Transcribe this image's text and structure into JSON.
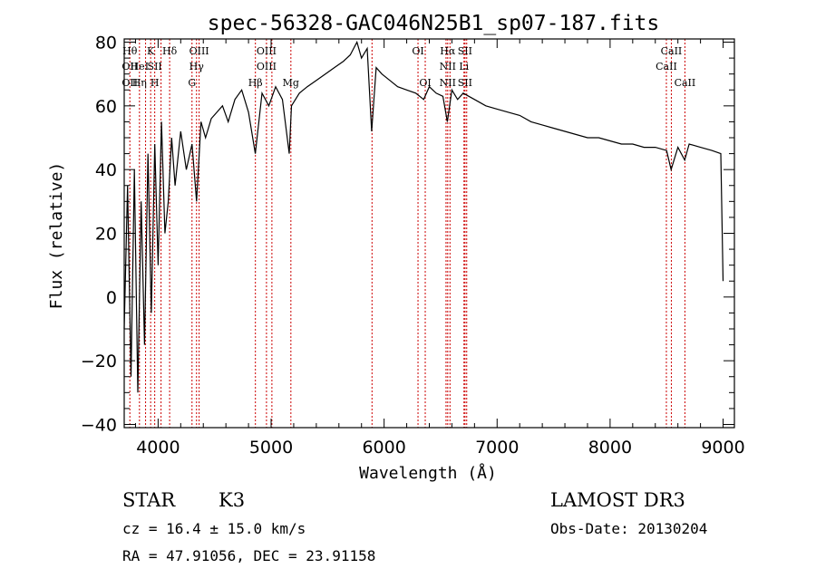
{
  "chart_data": {
    "type": "line",
    "title": "spec-56328-GAC046N25B1_sp07-187.fits",
    "xlabel": "Wavelength (Å)",
    "ylabel": "Flux (relative)",
    "xlim": [
      3700,
      9100
    ],
    "ylim": [
      -41,
      81
    ],
    "x_ticks": [
      4000,
      5000,
      6000,
      7000,
      8000,
      9000
    ],
    "y_ticks": [
      -40,
      -20,
      0,
      20,
      40,
      60,
      80
    ],
    "series": [
      {
        "name": "flux",
        "x": [
          3700,
          3730,
          3760,
          3790,
          3820,
          3850,
          3880,
          3910,
          3940,
          3970,
          4000,
          4030,
          4060,
          4090,
          4120,
          4150,
          4200,
          4250,
          4300,
          4340,
          4380,
          4420,
          4470,
          4520,
          4570,
          4620,
          4680,
          4740,
          4800,
          4860,
          4920,
          4980,
          5040,
          5100,
          5160,
          5180,
          5250,
          5320,
          5400,
          5480,
          5560,
          5640,
          5700,
          5760,
          5800,
          5850,
          5890,
          5930,
          5980,
          6050,
          6120,
          6200,
          6280,
          6350,
          6400,
          6460,
          6520,
          6560,
          6600,
          6650,
          6700,
          6750,
          6800,
          6900,
          7000,
          7100,
          7200,
          7300,
          7400,
          7500,
          7600,
          7700,
          7800,
          7900,
          8000,
          8100,
          8200,
          8300,
          8400,
          8500,
          8540,
          8600,
          8660,
          8700,
          8800,
          8900,
          8980,
          9000
        ],
        "y": [
          -10,
          35,
          -25,
          40,
          -30,
          30,
          -15,
          45,
          -5,
          48,
          10,
          55,
          20,
          30,
          50,
          35,
          52,
          40,
          48,
          30,
          55,
          50,
          56,
          58,
          60,
          55,
          62,
          65,
          58,
          45,
          64,
          60,
          66,
          62,
          45,
          60,
          64,
          66,
          68,
          70,
          72,
          74,
          76,
          80,
          75,
          78,
          52,
          72,
          70,
          68,
          66,
          65,
          64,
          62,
          66,
          64,
          63,
          55,
          65,
          62,
          64,
          63,
          62,
          60,
          59,
          58,
          57,
          55,
          54,
          53,
          52,
          51,
          50,
          50,
          49,
          48,
          48,
          47,
          47,
          46,
          40,
          47,
          43,
          48,
          47,
          46,
          45,
          5
        ]
      }
    ],
    "line_markers": [
      {
        "wl": 3750,
        "labels": [
          "Hθ",
          "OII",
          "OII"
        ]
      },
      {
        "wl": 3835,
        "labels": [
          "",
          "HeI",
          "Hη"
        ]
      },
      {
        "wl": 3889,
        "labels": [
          "",
          "",
          ""
        ]
      },
      {
        "wl": 3934,
        "labels": [
          "K",
          "",
          ""
        ]
      },
      {
        "wl": 3970,
        "labels": [
          "",
          "SII",
          "H"
        ]
      },
      {
        "wl": 4026,
        "labels": [
          "",
          "",
          ""
        ]
      },
      {
        "wl": 4102,
        "labels": [
          "Hδ",
          "",
          ""
        ]
      },
      {
        "wl": 4300,
        "labels": [
          "",
          "",
          "G"
        ]
      },
      {
        "wl": 4340,
        "labels": [
          "",
          "Hγ",
          ""
        ]
      },
      {
        "wl": 4363,
        "labels": [
          "OIII",
          "",
          ""
        ]
      },
      {
        "wl": 4861,
        "labels": [
          "",
          "",
          "Hβ"
        ]
      },
      {
        "wl": 4959,
        "labels": [
          "OIII",
          "OIII",
          ""
        ]
      },
      {
        "wl": 5007,
        "labels": [
          "",
          "",
          ""
        ]
      },
      {
        "wl": 5175,
        "labels": [
          "",
          "",
          "Mg"
        ]
      },
      {
        "wl": 5893,
        "labels": [
          "",
          "",
          ""
        ]
      },
      {
        "wl": 6300,
        "labels": [
          "OI",
          "",
          ""
        ]
      },
      {
        "wl": 6364,
        "labels": [
          "",
          "",
          "OI"
        ]
      },
      {
        "wl": 6548,
        "labels": [
          "",
          "",
          ""
        ]
      },
      {
        "wl": 6563,
        "labels": [
          "Hα",
          "NII",
          "NII"
        ]
      },
      {
        "wl": 6583,
        "labels": [
          "",
          "",
          ""
        ]
      },
      {
        "wl": 6707,
        "labels": [
          "",
          "Li",
          ""
        ]
      },
      {
        "wl": 6716,
        "labels": [
          "SII",
          "",
          "SII"
        ]
      },
      {
        "wl": 6731,
        "labels": [
          "",
          "",
          ""
        ]
      },
      {
        "wl": 8498,
        "labels": [
          "",
          "CaII",
          ""
        ]
      },
      {
        "wl": 8542,
        "labels": [
          "CaII",
          "",
          ""
        ]
      },
      {
        "wl": 8662,
        "labels": [
          "",
          "",
          "CaII"
        ]
      }
    ]
  },
  "info": {
    "class": "STAR",
    "subclass": "K3",
    "cz": "cz = 16.4 ± 15.0 km/s",
    "coords": "RA =  47.91056, DEC =  23.91158",
    "survey": "LAMOST DR3",
    "obs_date": "Obs-Date: 20130204"
  },
  "colors": {
    "line": "#000000",
    "marker": "#cc0000"
  }
}
